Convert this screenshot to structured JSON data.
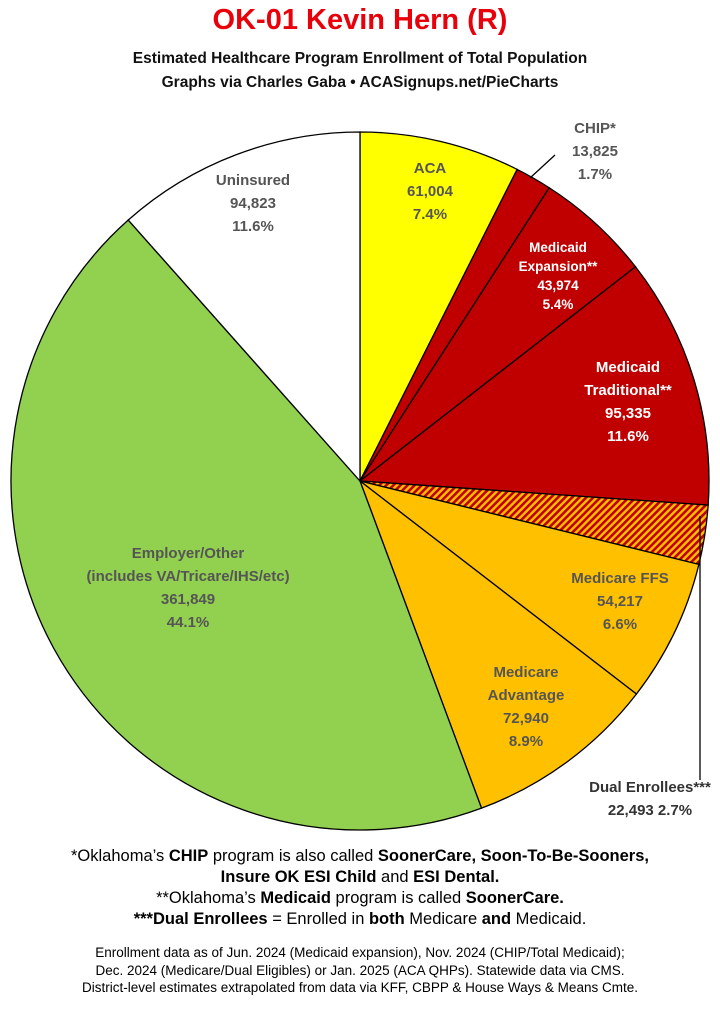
{
  "header": {
    "title": "OK-01 Kevin Hern (R)",
    "subtitle1": "Estimated Healthcare Program Enrollment of Total Population",
    "subtitle2": "Graphs via Charles Gaba  •  ACASignups.net/PieCharts"
  },
  "colors": {
    "aca": "#ffff00",
    "medicaid": "#c00000",
    "medicare": "#ffc000",
    "employer": "#92d050",
    "uninsured": "#ffffff",
    "title": "#e8000b"
  },
  "chart_data": {
    "type": "pie",
    "start": "12 o'clock",
    "direction": "clockwise",
    "slices": [
      {
        "label": [
          "ACA"
        ],
        "value": 61004,
        "value_text": "61,004",
        "pct": "7.4%",
        "color": "#ffff00",
        "text_color": "#555555",
        "pattern": "solid"
      },
      {
        "label": [
          "CHIP*"
        ],
        "value": 13825,
        "value_text": "13,825",
        "pct": "1.7%",
        "color": "#c00000",
        "text_color": "#555555",
        "pattern": "solid",
        "external": true
      },
      {
        "label": [
          "Medicaid",
          "Expansion**"
        ],
        "value": 43974,
        "value_text": "43,974",
        "pct": "5.4%",
        "color": "#c00000",
        "text_color": "#ffffff",
        "pattern": "solid"
      },
      {
        "label": [
          "Medicaid",
          "Traditional**"
        ],
        "value": 95335,
        "value_text": "95,335",
        "pct": "11.6%",
        "color": "#c00000",
        "text_color": "#ffffff",
        "pattern": "solid"
      },
      {
        "label": [
          "Dual Enrollees***"
        ],
        "value": 22493,
        "value_text": "22,493",
        "pct": "2.7%",
        "color": "#c00000",
        "text_color": "#333333",
        "pattern": "hatched",
        "external": true
      },
      {
        "label": [
          "Medicare FFS"
        ],
        "value": 54217,
        "value_text": "54,217",
        "pct": "6.6%",
        "color": "#ffc000",
        "text_color": "#555555",
        "pattern": "solid"
      },
      {
        "label": [
          "Medicare",
          "Advantage"
        ],
        "value": 72940,
        "value_text": "72,940",
        "pct": "8.9%",
        "color": "#ffc000",
        "text_color": "#555555",
        "pattern": "solid"
      },
      {
        "label": [
          "Employer/Other",
          "(includes VA/Tricare/IHS/etc)"
        ],
        "value": 361849,
        "value_text": "361,849",
        "pct": "44.1%",
        "color": "#92d050",
        "text_color": "#555555",
        "pattern": "solid"
      },
      {
        "label": [
          "Uninsured"
        ],
        "value": 94823,
        "value_text": "94,823",
        "pct": "11.6%",
        "color": "#ffffff",
        "text_color": "#555555",
        "pattern": "solid"
      }
    ]
  },
  "notes": {
    "chip": [
      {
        "t": "*Oklahoma’s ",
        "b": false
      },
      {
        "t": "CHIP",
        "b": true
      },
      {
        "t": " program is also called ",
        "b": false
      },
      {
        "t": "SoonerCare, Soon-To-Be-Sooners,",
        "b": true
      }
    ],
    "chip2": [
      {
        "t": "Insure OK ESI Child",
        "b": true
      },
      {
        "t": " and ",
        "b": false
      },
      {
        "t": "ESI Dental.",
        "b": true
      }
    ],
    "medicaid": [
      {
        "t": "**Oklahoma’s ",
        "b": false
      },
      {
        "t": "Medicaid",
        "b": true
      },
      {
        "t": " program is called ",
        "b": false
      },
      {
        "t": "SoonerCare.",
        "b": true
      }
    ],
    "dual": [
      {
        "t": "***Dual Enrollees",
        "b": true
      },
      {
        "t": " = Enrolled in ",
        "b": false
      },
      {
        "t": "both",
        "b": true
      },
      {
        "t": " Medicare ",
        "b": false
      },
      {
        "t": "and",
        "b": true
      },
      {
        "t": " Medicaid.",
        "b": false
      }
    ]
  },
  "sources": {
    "line1": "Enrollment data as of Jun. 2024 (Medicaid expansion), Nov. 2024 (CHIP/Total Medicaid);",
    "line2": "Dec. 2024 (Medicare/Dual Eligibles) or Jan. 2025 (ACA QHPs). Statewide data via CMS.",
    "line3": "District-level estimates extrapolated from data via KFF, CBPP & House Ways & Means Cmte."
  }
}
